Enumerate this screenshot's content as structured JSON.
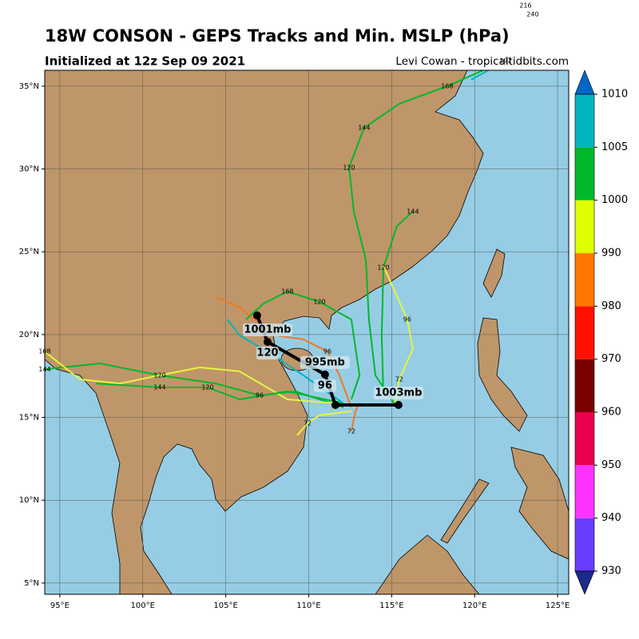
{
  "header": {
    "title": "18W CONSON - GEPS Tracks and Min. MSLP (hPa)",
    "subtitle": "Initialized at 12z Sep 09 2021",
    "credit": "Levi Cowan - tropicaltidbits.com"
  },
  "map": {
    "xlim": [
      94.09,
      125.67
    ],
    "ylim": [
      4.32,
      35.96
    ],
    "xticks": [
      {
        "value": 95,
        "label": "95°E"
      },
      {
        "value": 100,
        "label": "100°E"
      },
      {
        "value": 105,
        "label": "105°E"
      },
      {
        "value": 110,
        "label": "110°E"
      },
      {
        "value": 115,
        "label": "115°E"
      },
      {
        "value": 120,
        "label": "120°E"
      },
      {
        "value": 125,
        "label": "125°E"
      }
    ],
    "yticks": [
      {
        "value": 5,
        "label": "5°N"
      },
      {
        "value": 10,
        "label": "10°N"
      },
      {
        "value": 15,
        "label": "15°N"
      },
      {
        "value": 20,
        "label": "20°N"
      },
      {
        "value": 25,
        "label": "25°N"
      },
      {
        "value": 30,
        "label": "30°N"
      },
      {
        "value": 35,
        "label": "35°N"
      }
    ],
    "grid": true,
    "tracks": [
      {
        "color": "#00b82a",
        "lon": [
          115.22,
          114.02,
          113.63,
          113.44,
          112.72,
          112.43,
          113.34,
          115.46,
          118.35,
          120.52
        ],
        "lat": [
          15.75,
          17.54,
          20.91,
          24.53,
          27.42,
          30.08,
          32.49,
          33.94,
          35.0,
          35.96
        ],
        "hour_labels": [
          null,
          null,
          null,
          null,
          null,
          "120",
          "144",
          null,
          "168",
          null
        ]
      },
      {
        "color": "#00b4c0",
        "lon": [
          119.8,
          121.87,
          123.07,
          123.5
        ],
        "lat": [
          35.39,
          36.54,
          39.87,
          39.34
        ],
        "hour_labels": [
          null,
          "192",
          "216",
          "240"
        ]
      },
      {
        "color": "#00b82a",
        "lon": [
          114.5,
          114.4,
          114.5,
          115.32,
          116.28
        ],
        "lat": [
          16.33,
          19.95,
          24.05,
          26.56,
          27.43
        ],
        "hour_labels": [
          null,
          null,
          "120",
          null,
          "144"
        ]
      },
      {
        "color": "#e6f53c",
        "lon": [
          115.22,
          115.46,
          116.28,
          115.94,
          114.5
        ],
        "lat": [
          15.85,
          17.3,
          19.13,
          20.91,
          24.15
        ],
        "hour_labels": [
          null,
          "72",
          null,
          "96",
          null
        ]
      },
      {
        "color": "#f07820",
        "lon": [
          112.57,
          111.85,
          111.13,
          109.68,
          108.0,
          105.83,
          104.48
        ],
        "lat": [
          15.61,
          17.54,
          18.98,
          19.71,
          19.95,
          21.64,
          22.22
        ],
        "hour_labels": [
          null,
          null,
          "96",
          null,
          null,
          null,
          null
        ]
      },
      {
        "color": "#00b82a",
        "lon": [
          112.09,
          109.2,
          107.04,
          104.39,
          101.02,
          97.41,
          94.09
        ],
        "lat": [
          15.61,
          16.57,
          16.33,
          17.05,
          17.54,
          18.26,
          17.9
        ],
        "hour_labels": [
          null,
          null,
          "96",
          null,
          "120",
          null,
          "144"
        ]
      },
      {
        "color": "#e6f53c",
        "lon": [
          111.61,
          108.72,
          105.83,
          103.43,
          101.02,
          98.61,
          96.2,
          94.09
        ],
        "lat": [
          15.85,
          16.09,
          17.78,
          18.02,
          17.54,
          17.05,
          17.3,
          18.98
        ],
        "hour_labels": [
          null,
          null,
          null,
          null,
          null,
          null,
          null,
          "168"
        ]
      },
      {
        "color": "#00b82a",
        "lon": [
          112.09,
          108.72,
          105.83,
          103.91,
          101.02,
          97.17
        ],
        "lat": [
          15.85,
          16.57,
          16.09,
          16.81,
          16.81,
          17.05
        ],
        "hour_labels": [
          null,
          null,
          null,
          "120",
          "144",
          null
        ]
      },
      {
        "color": "#e6f53c",
        "lon": [
          112.57,
          110.65,
          109.93,
          109.3
        ],
        "lat": [
          15.37,
          15.13,
          14.64,
          13.92
        ],
        "hour_labels": [
          null,
          null,
          "72",
          null
        ]
      },
      {
        "color": "#00b4c0",
        "lon": [
          112.09,
          109.68,
          107.52,
          105.83,
          105.11
        ],
        "lat": [
          15.85,
          17.54,
          18.98,
          19.95,
          20.91
        ],
        "hour_labels": [
          null,
          null,
          "120",
          null,
          null
        ]
      },
      {
        "color": "#f07820",
        "lon": [
          113.06,
          112.81,
          112.57
        ],
        "lat": [
          15.85,
          15.37,
          14.16
        ],
        "hour_labels": [
          null,
          null,
          "72"
        ]
      },
      {
        "color": "#00b82a",
        "lon": [
          112.57,
          113.06,
          112.57,
          110.65,
          108.72,
          107.28,
          106.22
        ],
        "lat": [
          16.09,
          17.54,
          20.91,
          21.98,
          22.6,
          21.88,
          20.91
        ],
        "hour_labels": [
          null,
          null,
          null,
          "120",
          "168",
          null,
          null
        ]
      }
    ],
    "mean_track": {
      "color": "#000000",
      "lon": [
        115.41,
        111.61,
        110.98,
        107.52,
        106.89
      ],
      "lat": [
        15.75,
        15.75,
        17.59,
        19.56,
        21.16
      ],
      "mslp_labels": [
        "1003mb",
        null,
        "995mb",
        "1001mb",
        null
      ],
      "hour_labels": [
        null,
        null,
        "96",
        "120",
        null
      ]
    }
  },
  "colorbar": {
    "boundaries": [
      930,
      940,
      950,
      960,
      970,
      980,
      990,
      1000,
      1005,
      1010
    ],
    "colors": [
      "#6a3cff",
      "#ff33ff",
      "#e8004e",
      "#7a0000",
      "#ff1100",
      "#ff7700",
      "#e0ff00",
      "#00b82a",
      "#00b4c0"
    ],
    "under": "#1a2a8c",
    "over": "#0066c8"
  }
}
